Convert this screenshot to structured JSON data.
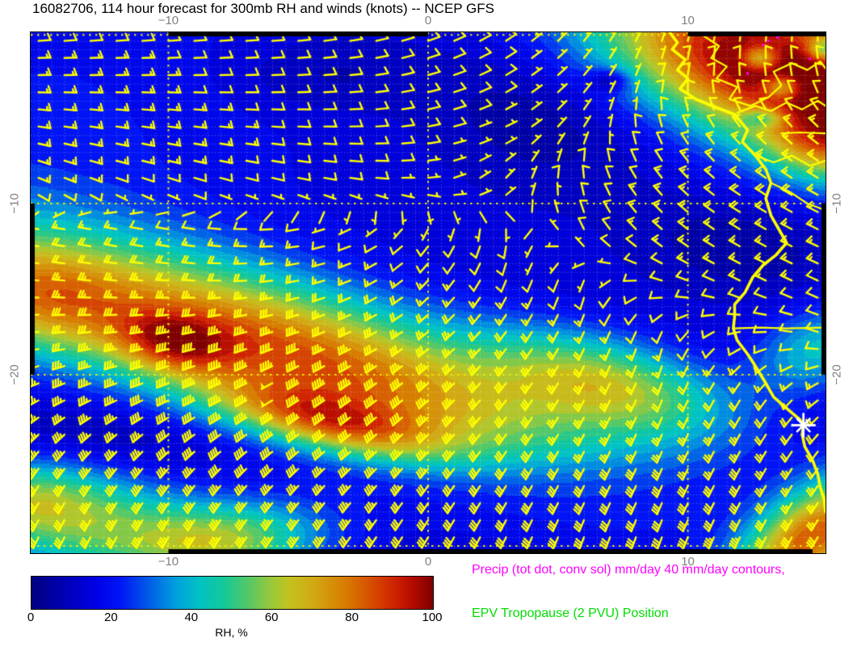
{
  "title": "16082706, 114 hour forecast for 300mb RH and winds (knots) -- NCEP GFS",
  "legend": {
    "precip": "Precip (tot dot, conv sol) mm/day 40 mm/day contours,",
    "epv": "EPV Tropopause (2 PVU) Position",
    "precip_color": "#ff00ff",
    "epv_color": "#00dd00"
  },
  "colorbar": {
    "label": "RH, %",
    "ticks": [
      "0",
      "20",
      "40",
      "60",
      "80",
      "100"
    ],
    "tick_values": [
      0,
      20,
      40,
      60,
      80,
      100
    ]
  },
  "axes": {
    "lon_ticks": [
      {
        "label": "−10",
        "value": -10
      },
      {
        "label": "0",
        "value": 0
      },
      {
        "label": "10",
        "value": 10
      }
    ],
    "lat_ticks": [
      {
        "label": "−10",
        "value": -10
      },
      {
        "label": "−20",
        "value": -20
      }
    ],
    "lon_min": -15.3,
    "lon_max": 15.3,
    "lat_min": -30.43,
    "lat_max": 0,
    "gridline_lons": [
      -10,
      0,
      10
    ],
    "gridline_lats": [
      -0.15,
      -10,
      -20,
      -30
    ],
    "fine_grid_step_deg": 0.5
  },
  "chart_data": {
    "type": "heatmap",
    "field": "300mb relative humidity (%), NCEP GFS 114h forecast valid base 16082706",
    "overlay": "wind barbs (knots) every 1 degree",
    "colormap": [
      [
        0,
        "#000080"
      ],
      [
        8,
        "#0000b4"
      ],
      [
        16,
        "#0000e6"
      ],
      [
        22,
        "#0014f5"
      ],
      [
        30,
        "#0064e6"
      ],
      [
        36,
        "#00a0dc"
      ],
      [
        42,
        "#00c3c3"
      ],
      [
        48,
        "#14c896"
      ],
      [
        54,
        "#55c867"
      ],
      [
        60,
        "#9cc838"
      ],
      [
        64,
        "#c3c31e"
      ],
      [
        70,
        "#d2a915"
      ],
      [
        78,
        "#d77d00"
      ],
      [
        84,
        "#d75200"
      ],
      [
        90,
        "#d02500"
      ],
      [
        95,
        "#b40a00"
      ],
      [
        100,
        "#7f0000"
      ]
    ],
    "contour_step_pct": 4,
    "rh_base": 13,
    "rh_blobs": [
      [
        -15.0,
        -6.0,
        7.0,
        7.0,
        0,
        8
      ],
      [
        -5.0,
        -19.0,
        9.0,
        2.8,
        -27,
        72
      ],
      [
        -3.8,
        -22.8,
        3.2,
        1.1,
        -20,
        38
      ],
      [
        -9.8,
        -18.2,
        1.6,
        1.2,
        -20,
        30
      ],
      [
        -15.5,
        -15.5,
        3.0,
        2.2,
        -30,
        35
      ],
      [
        7.0,
        -20.5,
        3.5,
        1.8,
        -25,
        42
      ],
      [
        13.5,
        -2.2,
        5.5,
        2.9,
        -33,
        95
      ],
      [
        15.3,
        -6.5,
        1.5,
        1.5,
        0,
        30
      ],
      [
        15.0,
        -18.5,
        2.0,
        1.5,
        50,
        28
      ],
      [
        14.8,
        -29.5,
        3.0,
        1.5,
        56,
        68
      ],
      [
        -8.0,
        -29.8,
        2.8,
        1.6,
        10,
        45
      ],
      [
        -13.5,
        -28.5,
        3.0,
        2.0,
        0,
        38
      ],
      [
        -15.8,
        -27.0,
        2.0,
        1.5,
        0,
        25
      ],
      [
        4.5,
        -5.0,
        3.2,
        2.5,
        -30,
        -9
      ],
      [
        -4.0,
        -2.5,
        2.5,
        1.5,
        0,
        -7
      ],
      [
        12.0,
        -12.5,
        2.5,
        1.8,
        -20,
        -9
      ],
      [
        4.0,
        -26.0,
        5.0,
        1.4,
        -8,
        -8
      ],
      [
        -12.0,
        -23.5,
        3.5,
        1.3,
        -15,
        -7
      ],
      [
        12.8,
        -1.5,
        0.5,
        0.5,
        0,
        -35
      ],
      [
        13.6,
        -3.2,
        0.5,
        0.5,
        0,
        -30
      ],
      [
        12.9,
        -5.0,
        0.6,
        0.4,
        0,
        -25
      ],
      [
        15.2,
        -1.0,
        0.4,
        0.4,
        0,
        -30
      ],
      [
        7.0,
        -2.8,
        0.6,
        0.5,
        0,
        -20
      ]
    ],
    "wind_grid": {
      "lons": [
        -15,
        -12,
        -9,
        -6,
        -3,
        0,
        3,
        6,
        9,
        12,
        15
      ],
      "lats": [
        0,
        -3,
        -6,
        -9,
        -12,
        -15,
        -18,
        -21,
        -24,
        -27,
        -30
      ],
      "dir_from_deg": [
        [
          85,
          85,
          85,
          85,
          80,
          70,
          55,
          40,
          20,
          10,
          5
        ],
        [
          90,
          90,
          90,
          88,
          85,
          75,
          60,
          40,
          15,
          355,
          345
        ],
        [
          100,
          100,
          98,
          95,
          90,
          80,
          65,
          30,
          340,
          320,
          310
        ],
        [
          115,
          112,
          108,
          105,
          100,
          85,
          40,
          350,
          320,
          305,
          300
        ],
        [
          280,
          282,
          280,
          270,
          250,
          215,
          185,
          330,
          310,
          300,
          295
        ],
        [
          275,
          275,
          272,
          262,
          248,
          225,
          205,
          195,
          280,
          295,
          295
        ],
        [
          262,
          262,
          258,
          252,
          245,
          232,
          218,
          205,
          195,
          250,
          285
        ],
        [
          245,
          248,
          246,
          240,
          235,
          228,
          218,
          208,
          202,
          212,
          235
        ],
        [
          222,
          226,
          230,
          232,
          230,
          225,
          215,
          208,
          204,
          208,
          218
        ],
        [
          210,
          212,
          215,
          220,
          220,
          215,
          210,
          206,
          204,
          208,
          214
        ],
        [
          205,
          206,
          210,
          212,
          214,
          210,
          205,
          200,
          200,
          204,
          210
        ]
      ],
      "speed_kt": [
        [
          12,
          12,
          12,
          10,
          10,
          10,
          8,
          6,
          6,
          8,
          8
        ],
        [
          15,
          15,
          12,
          12,
          10,
          10,
          8,
          6,
          8,
          10,
          10
        ],
        [
          15,
          15,
          15,
          12,
          10,
          8,
          6,
          6,
          10,
          15,
          15
        ],
        [
          15,
          12,
          12,
          10,
          8,
          6,
          6,
          10,
          15,
          18,
          18
        ],
        [
          18,
          18,
          15,
          12,
          10,
          8,
          8,
          8,
          15,
          18,
          15
        ],
        [
          25,
          25,
          22,
          20,
          18,
          15,
          12,
          10,
          10,
          12,
          12
        ],
        [
          30,
          35,
          40,
          38,
          32,
          28,
          22,
          18,
          12,
          10,
          10
        ],
        [
          35,
          38,
          45,
          50,
          45,
          38,
          30,
          25,
          20,
          18,
          15
        ],
        [
          35,
          35,
          40,
          42,
          40,
          35,
          30,
          26,
          25,
          25,
          20
        ],
        [
          32,
          34,
          35,
          35,
          34,
          32,
          30,
          30,
          30,
          30,
          25
        ],
        [
          30,
          32,
          34,
          34,
          32,
          30,
          30,
          30,
          32,
          34,
          30
        ]
      ]
    },
    "coastline": [
      [
        9.3,
        0
      ],
      [
        9.6,
        -0.6
      ],
      [
        9.4,
        -1.0
      ],
      [
        9.9,
        -1.6
      ],
      [
        9.6,
        -2.2
      ],
      [
        10.0,
        -2.7
      ],
      [
        9.7,
        -3.3
      ],
      [
        10.3,
        -3.9
      ],
      [
        11.1,
        -4.4
      ],
      [
        11.8,
        -4.8
      ],
      [
        12.3,
        -5.7
      ],
      [
        12.1,
        -6.4
      ],
      [
        12.6,
        -7.2
      ],
      [
        13.0,
        -8.0
      ],
      [
        13.2,
        -8.8
      ],
      [
        13.0,
        -9.7
      ],
      [
        13.2,
        -10.7
      ],
      [
        13.5,
        -11.5
      ],
      [
        13.8,
        -12.3
      ],
      [
        13.4,
        -13.0
      ],
      [
        12.9,
        -13.6
      ],
      [
        12.5,
        -14.3
      ],
      [
        12.2,
        -15.2
      ],
      [
        11.8,
        -15.9
      ],
      [
        11.8,
        -16.6
      ],
      [
        11.75,
        -17.3
      ],
      [
        11.9,
        -18.0
      ],
      [
        12.3,
        -18.8
      ],
      [
        12.6,
        -19.5
      ],
      [
        13.0,
        -20.5
      ],
      [
        13.3,
        -21.3
      ],
      [
        13.9,
        -22.1
      ],
      [
        14.3,
        -22.6
      ],
      [
        14.45,
        -22.95
      ],
      [
        14.4,
        -23.5
      ],
      [
        14.5,
        -24.2
      ],
      [
        14.8,
        -25.0
      ],
      [
        15.0,
        -25.8
      ],
      [
        15.1,
        -26.6
      ],
      [
        15.25,
        -27.3
      ],
      [
        15.3,
        -28.0
      ]
    ],
    "rivers": [
      [
        [
          11.9,
          -4.7
        ],
        [
          12.6,
          -4.3
        ],
        [
          13.2,
          -4.6
        ],
        [
          13.8,
          -4.1
        ],
        [
          14.4,
          -4.5
        ],
        [
          15.0,
          -4.0
        ],
        [
          15.3,
          -4.3
        ]
      ],
      [
        [
          10.6,
          -0.2
        ],
        [
          11.2,
          -0.8
        ],
        [
          10.9,
          -1.5
        ],
        [
          11.5,
          -2.0
        ],
        [
          11.1,
          -2.7
        ],
        [
          11.9,
          -3.2
        ],
        [
          11.6,
          -3.9
        ],
        [
          12.4,
          -4.3
        ],
        [
          13.1,
          -3.8
        ],
        [
          13.6,
          -3.1
        ],
        [
          13.3,
          -2.3
        ],
        [
          14.0,
          -1.8
        ],
        [
          14.6,
          -2.2
        ],
        [
          15.1,
          -1.7
        ],
        [
          15.3,
          -2.1
        ]
      ],
      [
        [
          13.6,
          -5.9
        ],
        [
          14.3,
          -5.85
        ],
        [
          15.3,
          -5.9
        ]
      ],
      [
        [
          11.75,
          -17.3
        ],
        [
          12.8,
          -17.25
        ],
        [
          13.8,
          -17.3
        ],
        [
          15.3,
          -17.25
        ]
      ],
      [
        [
          12.6,
          -7.2
        ],
        [
          13.3,
          -7.6
        ],
        [
          14.0,
          -7.2
        ],
        [
          14.7,
          -7.8
        ],
        [
          15.3,
          -7.5
        ]
      ],
      [
        [
          13.2,
          -8.8
        ],
        [
          13.9,
          -9.3
        ],
        [
          14.6,
          -10.0
        ],
        [
          15.3,
          -10.4
        ]
      ]
    ],
    "station_marker": {
      "lon": 14.45,
      "lat": -22.95,
      "symbol": "white-star"
    },
    "precip_dots": [
      [
        13.1,
        -0.5
      ],
      [
        13.45,
        -0.3
      ],
      [
        12.9,
        -0.75
      ],
      [
        14.7,
        -1.55
      ],
      [
        12.3,
        -2.4
      ]
    ],
    "frame_bands": {
      "top_black_lon": [
        [
          -10,
          0
        ],
        [
          10,
          15.3
        ]
      ],
      "bottom_black_lon": [
        [
          -10,
          10
        ],
        [
          10,
          14.8
        ]
      ],
      "left_black_lat": [
        [
          -10,
          -20
        ]
      ],
      "right_black_lat": [
        [
          -10,
          -20
        ]
      ]
    },
    "barb_color": "#ffff00",
    "gridline_color": "#f0f000"
  }
}
